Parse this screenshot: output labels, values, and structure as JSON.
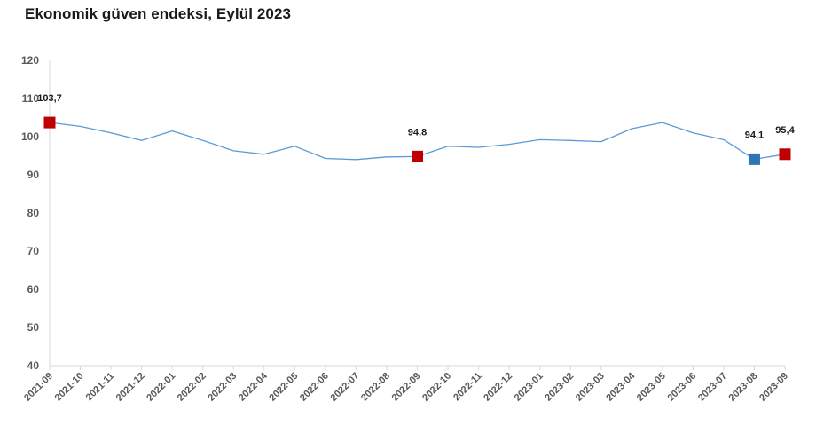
{
  "chart_data": {
    "type": "line",
    "title": "Ekonomik güven endeksi, Eylül 2023",
    "xlabel": "",
    "ylabel": "",
    "ylim": [
      40,
      120
    ],
    "yticks": [
      40,
      50,
      60,
      70,
      80,
      90,
      100,
      110,
      120
    ],
    "grid": false,
    "categories": [
      "2021-09",
      "2021-10",
      "2021-11",
      "2021-12",
      "2022-01",
      "2022-02",
      "2022-03",
      "2022-04",
      "2022-05",
      "2022-06",
      "2022-07",
      "2022-08",
      "2022-09",
      "2022-10",
      "2022-11",
      "2022-12",
      "2023-01",
      "2023-02",
      "2023-03",
      "2023-04",
      "2023-05",
      "2023-06",
      "2023-07",
      "2023-08",
      "2023-09"
    ],
    "series": [
      {
        "values": [
          103.7,
          102.7,
          101.0,
          99.0,
          101.5,
          99.0,
          96.3,
          95.4,
          97.5,
          94.3,
          94.0,
          94.7,
          94.8,
          97.5,
          97.2,
          98.0,
          99.2,
          99.0,
          98.7,
          102.1,
          103.7,
          101.0,
          99.2,
          94.1,
          95.4
        ],
        "color": "#5b9bd5"
      }
    ],
    "highlights": [
      {
        "category": "2021-09",
        "value": 103.7,
        "label": "103,7",
        "color": "#c00000"
      },
      {
        "category": "2022-09",
        "value": 94.8,
        "label": "94,8",
        "color": "#c00000"
      },
      {
        "category": "2023-08",
        "value": 94.1,
        "label": "94,1",
        "color": "#2e75b6"
      },
      {
        "category": "2023-09",
        "value": 95.4,
        "label": "95,4",
        "color": "#c00000"
      }
    ],
    "axis_color": "#d9d9d9",
    "tick_color": "#595959"
  }
}
